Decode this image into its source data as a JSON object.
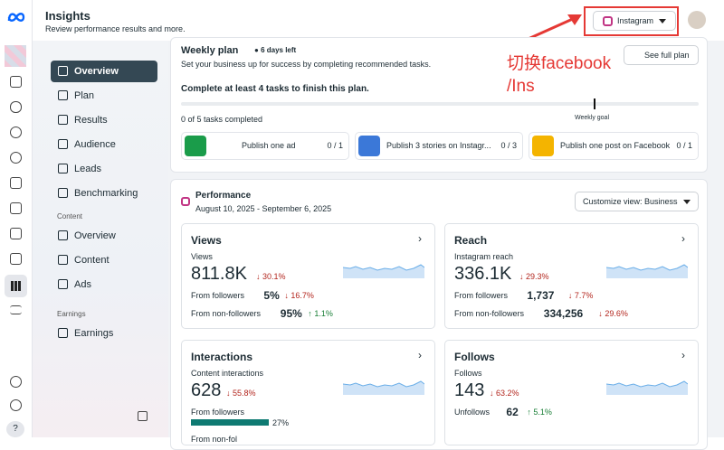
{
  "header": {
    "title": "Insights",
    "subtitle": "Review performance results and more.",
    "account": "Instagram"
  },
  "annotation": {
    "lines": [
      "切换facebook",
      "/Ins"
    ]
  },
  "nav": {
    "items": [
      "Overview",
      "Plan",
      "Results",
      "Audience",
      "Leads",
      "Benchmarking"
    ],
    "sections": [
      {
        "title": "Content",
        "items": [
          "Overview",
          "Content",
          "Ads"
        ]
      },
      {
        "title": "Earnings",
        "items": [
          "Earnings"
        ]
      }
    ]
  },
  "weekly_plan": {
    "title": "Weekly plan",
    "badge": "6 days left",
    "description": "Set your business up for success by completing recommended tasks.",
    "button": "See full plan",
    "goal": "Complete at least 4 tasks to finish this plan.",
    "progress": "0 of 5 tasks completed",
    "goal_label": "Weekly goal",
    "tasks": [
      {
        "label": "Publish one ad",
        "count": "0 / 1"
      },
      {
        "label": "Publish 3 stories on Instagr...",
        "count": "0 / 3"
      },
      {
        "label": "Publish one post on Facebook",
        "count": "0 / 1"
      }
    ]
  },
  "performance": {
    "title": "Performance",
    "dates": "August 10, 2025 - September 6, 2025",
    "button": "Customize view: Business",
    "cards": [
      {
        "title": "Views",
        "metric": "Views",
        "value": "811.8K",
        "change": "30.1%",
        "dir": "down",
        "rows": [
          {
            "label": "From followers",
            "value": "5%",
            "change": "16.7%",
            "dir": "down"
          },
          {
            "label": "From non-followers",
            "value": "95%",
            "change": "1.1%",
            "dir": "up"
          }
        ]
      },
      {
        "title": "Reach",
        "metric": "Instagram reach",
        "value": "336.1K",
        "change": "29.3%",
        "dir": "down",
        "rows": [
          {
            "label": "From followers",
            "value": "1,737",
            "change": "7.7%",
            "dir": "down"
          },
          {
            "label": "From non-followers",
            "value": "334,256",
            "change": "29.6%",
            "dir": "down"
          }
        ]
      },
      {
        "title": "Interactions",
        "metric": "Content interactions",
        "value": "628",
        "change": "55.8%",
        "dir": "down",
        "progress": {
          "label": "From followers",
          "value": "27%"
        },
        "rows": [
          {
            "label": "From non-fol"
          }
        ]
      },
      {
        "title": "Follows",
        "metric": "Follows",
        "value": "143",
        "change": "63.2%",
        "dir": "down",
        "rows": [
          {
            "label": "Unfollows",
            "value": "62",
            "change": "5.1%",
            "dir": "up"
          }
        ]
      }
    ]
  }
}
